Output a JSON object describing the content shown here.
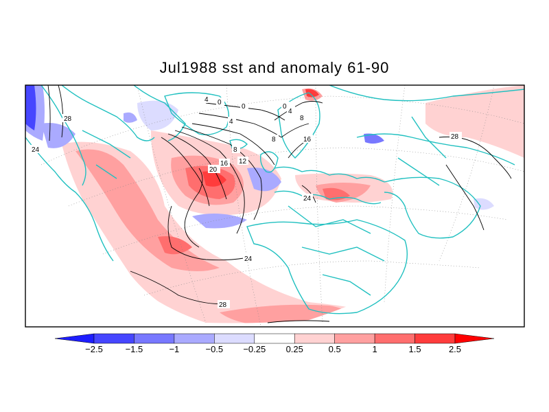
{
  "title": "Jul1988 sst and anomaly 61-90",
  "colors": {
    "coast": "#20c0c0",
    "contour": "#000000",
    "scale": [
      "#1e1eff",
      "#4646ff",
      "#7878ff",
      "#aaaaff",
      "#dcdcff",
      "#ffffff",
      "#ffd2d2",
      "#ffa0a0",
      "#ff6e6e",
      "#ff3c3c",
      "#ff0000"
    ]
  },
  "colorbar": {
    "labels": [
      "-2.5",
      "-1.5",
      "-1",
      "-0.5",
      "-0.25",
      "0.25",
      "0.5",
      "1",
      "1.5",
      "2.5"
    ]
  },
  "contour_labels": [
    "28",
    "24",
    "20",
    "16",
    "12",
    "8",
    "4",
    "0",
    "8",
    "16",
    "8",
    "4",
    "0",
    "24",
    "28",
    "28",
    "24",
    "4",
    "0"
  ]
}
